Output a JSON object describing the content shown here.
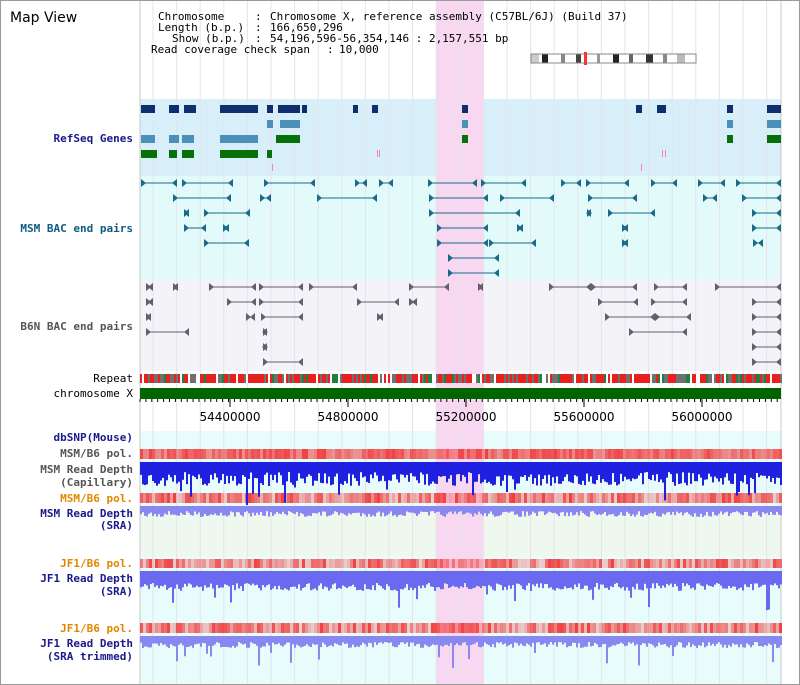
{
  "window": {
    "title": "Map View"
  },
  "info": {
    "chromosome_label": "Chromosome",
    "chromosome_value": "Chromosome X, reference assembly (C57BL/6J) (Build 37)",
    "length_label": "Length (b.p.)",
    "length_value": "166,650,296",
    "show_label": "Show (b.p.)",
    "show_value": "54,196,596-56,354,146 : 2,157,551 bp",
    "span_label": "Read coverage check span",
    "span_value": "10,000"
  },
  "tracks": {
    "refseq": "RefSeq Genes",
    "msm_bac": "MSM BAC end pairs",
    "b6n_bac": "B6N BAC end pairs",
    "repeat": "Repeat",
    "chromosome": "chromosome X",
    "dbsnp": "dbSNP(Mouse)",
    "msm_b6_pol_1": "MSM/B6 pol.",
    "msm_read_depth_cap_1": "MSM Read Depth",
    "msm_read_depth_cap_2": "(Capillary)",
    "msm_b6_pol_2": "MSM/B6 pol.",
    "msm_read_depth_sra_1": "MSM Read Depth",
    "msm_read_depth_sra_2": "(SRA)",
    "jf1_b6_pol_1": "JF1/B6 pol.",
    "jf1_read_depth_1": "JF1 Read Depth",
    "jf1_read_depth_2": "(SRA)",
    "jf1_b6_pol_2": "JF1/B6 pol.",
    "jf1_read_depth_trim_1": "JF1 Read Depth",
    "jf1_read_depth_trim_2": "(SRA trimmed)"
  },
  "axis": {
    "ticks": [
      "54400000",
      "54800000",
      "55200000",
      "55600000",
      "56000000"
    ]
  },
  "colors": {
    "highlight": "#f8d8f0",
    "refseq_bg": "#d8eef8",
    "msm_bg": "#e2fafa",
    "b6n_bg": "#f4f4f8",
    "gene_dark": "#0e2e6e",
    "gene_mid": "#4a90b8",
    "gene_green": "#087008",
    "chrom_bar": "#006400",
    "depth_blue": "#2020e0",
    "depth_light": "#8888f0",
    "pol_red": "#f04848"
  }
}
